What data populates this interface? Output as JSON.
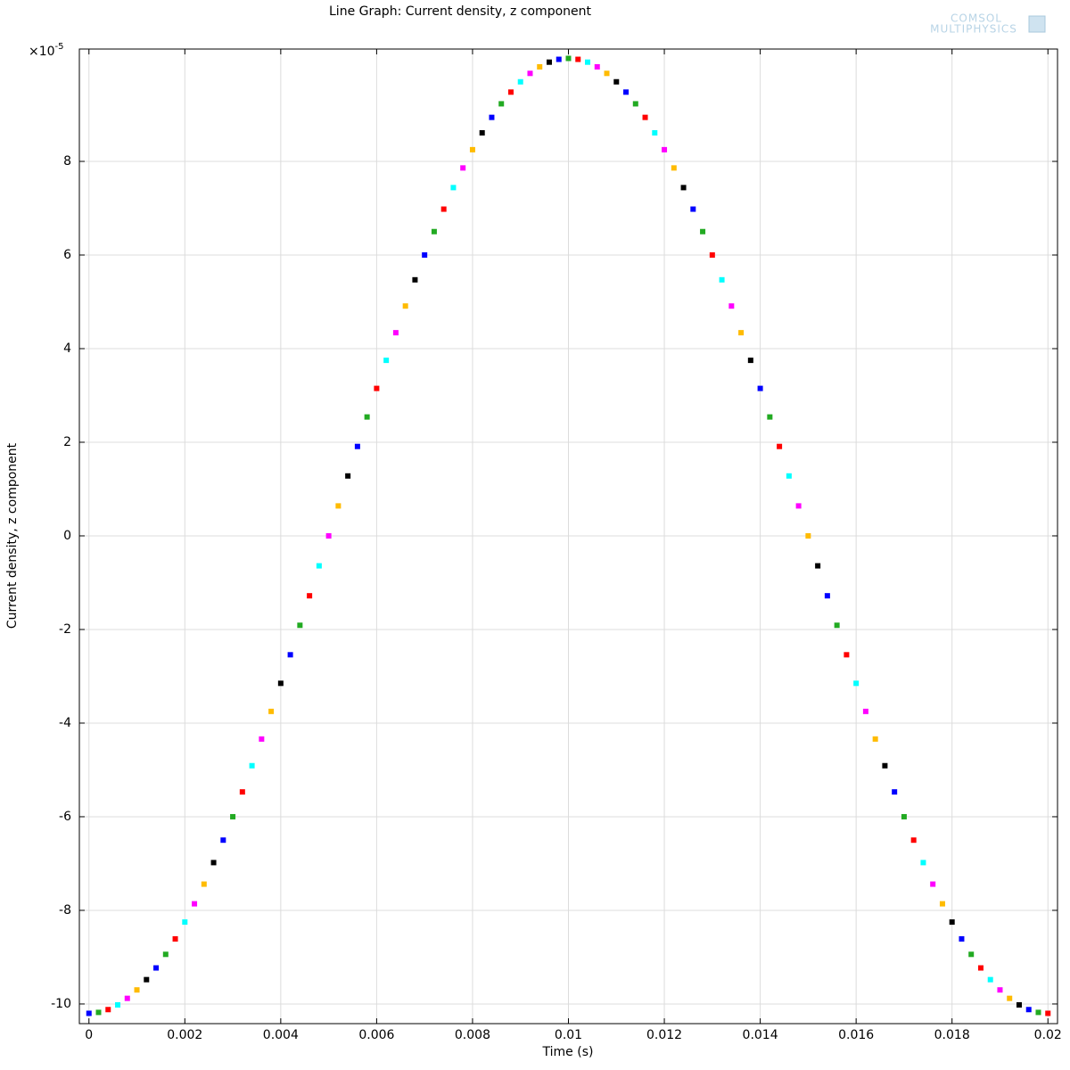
{
  "chart_data": {
    "type": "scatter",
    "title": "Line Graph: Current density, z component",
    "xlabel": "Time (s)",
    "ylabel": "Current density, z component",
    "y_multiplier": {
      "base": "×10",
      "exponent": "-5"
    },
    "logo": [
      "COMSOL",
      "MULTIPHYSICS"
    ],
    "colors": [
      "#0000ff",
      "#22aa22",
      "#ff0000",
      "#00ffff",
      "#ff00ff",
      "#ffbb00",
      "#000000"
    ],
    "grid": true,
    "xlim": [
      -0.0002,
      0.0202
    ],
    "ylim": [
      -10.42,
      10.4
    ],
    "xticks": [
      0,
      0.002,
      0.004,
      0.006,
      0.008,
      0.01,
      0.012,
      0.014,
      0.016,
      0.018,
      0.02
    ],
    "yticks": [
      -10,
      -8,
      -6,
      -4,
      -2,
      0,
      2,
      4,
      6,
      8
    ],
    "x": [
      0,
      0.0002,
      0.0004,
      0.0006,
      0.0008,
      0.001,
      0.0012,
      0.0014,
      0.0016,
      0.0018,
      0.002,
      0.0022,
      0.0024,
      0.0026,
      0.0028,
      0.003,
      0.0032,
      0.0034,
      0.0036,
      0.0038,
      0.004,
      0.0042,
      0.0044,
      0.0046,
      0.0048,
      0.005,
      0.0052,
      0.0054,
      0.0056,
      0.0058,
      0.006,
      0.0062,
      0.0064,
      0.0066,
      0.0068,
      0.007,
      0.0072,
      0.0074,
      0.0076,
      0.0078,
      0.008,
      0.0082,
      0.0084,
      0.0086,
      0.0088,
      0.009,
      0.0092,
      0.0094,
      0.0096,
      0.0098,
      0.01,
      0.0102,
      0.0104,
      0.0106,
      0.0108,
      0.011,
      0.0112,
      0.0114,
      0.0116,
      0.0118,
      0.012,
      0.0122,
      0.0124,
      0.0126,
      0.0128,
      0.013,
      0.0132,
      0.0134,
      0.0136,
      0.0138,
      0.014,
      0.0142,
      0.0144,
      0.0146,
      0.0148,
      0.015,
      0.0152,
      0.0154,
      0.0156,
      0.0158,
      0.016,
      0.0162,
      0.0164,
      0.0166,
      0.0168,
      0.017,
      0.0172,
      0.0174,
      0.0176,
      0.0178,
      0.018,
      0.0182,
      0.0184,
      0.0186,
      0.0188,
      0.019,
      0.0192,
      0.0194,
      0.0196,
      0.0198,
      0.02
    ],
    "values": [
      -10.2,
      -10.18,
      -10.12,
      -10.02,
      -9.88,
      -9.7,
      -9.48,
      -9.23,
      -8.94,
      -8.61,
      -8.25,
      -7.86,
      -7.44,
      -6.98,
      -6.5,
      -6.0,
      -5.47,
      -4.91,
      -4.34,
      -3.75,
      -3.15,
      -2.54,
      -1.91,
      -1.28,
      -0.64,
      0,
      0.64,
      1.28,
      1.91,
      2.54,
      3.15,
      3.75,
      4.34,
      4.91,
      5.47,
      6.0,
      6.5,
      6.98,
      7.44,
      7.86,
      8.25,
      8.61,
      8.94,
      9.23,
      9.48,
      9.7,
      9.88,
      10.02,
      10.12,
      10.18,
      10.2,
      10.18,
      10.12,
      10.02,
      9.88,
      9.7,
      9.48,
      9.23,
      8.94,
      8.61,
      8.25,
      7.86,
      7.44,
      6.98,
      6.5,
      6.0,
      5.47,
      4.91,
      4.34,
      3.75,
      3.15,
      2.54,
      1.91,
      1.28,
      0.64,
      0,
      -0.64,
      -1.28,
      -1.91,
      -2.54,
      -3.15,
      -3.75,
      -4.34,
      -4.91,
      -5.47,
      -6.0,
      -6.5,
      -6.98,
      -7.44,
      -7.86,
      -8.25,
      -8.61,
      -8.94,
      -9.23,
      -9.48,
      -9.7,
      -9.88,
      -10.02,
      -10.12,
      -10.18,
      -10.2
    ]
  }
}
